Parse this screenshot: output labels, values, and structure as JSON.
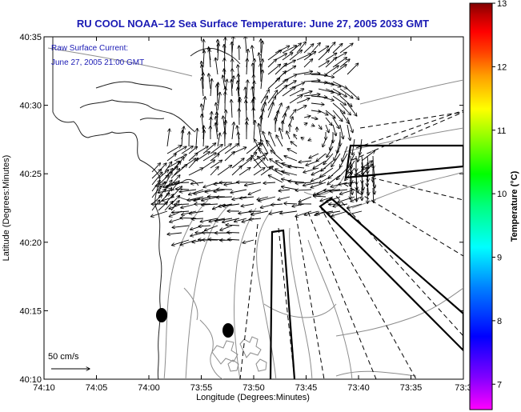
{
  "title": "RU COOL  NOAA–12  Sea Surface Temperature:  June 27, 2005 2033 GMT",
  "info_line1": "Raw Surface Current:",
  "info_line2": "June 27, 2005 21:00 GMT",
  "scale_label": "50 cm/s",
  "x_axis_label": "Longitude (Degrees:Minutes)",
  "y_axis_label": "Latitude (Degrees:Minutes)",
  "x_ticks": [
    "74:10",
    "74:05",
    "74:00",
    "73:55",
    "73:50",
    "73:45",
    "73:40",
    "73:35",
    "73:3"
  ],
  "y_ticks": [
    "40:35",
    "40:30",
    "40:25",
    "40:20",
    "40:15",
    "40:10"
  ],
  "colorbar": {
    "label": "Temperature (°C)",
    "ticks": [
      "13",
      "12",
      "11",
      "10",
      "9",
      "8",
      "7"
    ],
    "min": 6.6,
    "max": 13,
    "colors": [
      "#ff00ff",
      "#8000ff",
      "#0000ff",
      "#0080ff",
      "#00ffff",
      "#00ff80",
      "#00ff00",
      "#80ff00",
      "#ffff00",
      "#ffa000",
      "#ff4000",
      "#ff0000",
      "#c00000",
      "#800000"
    ]
  }
}
